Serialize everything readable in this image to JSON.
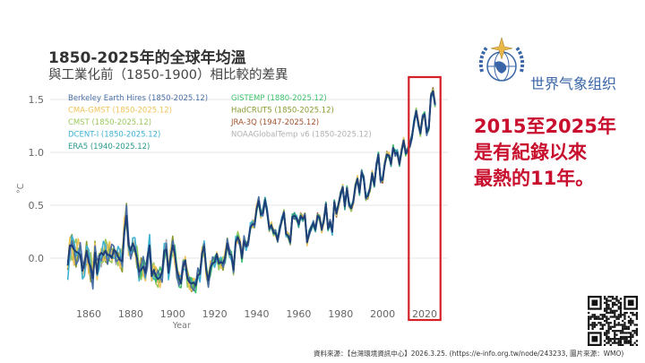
{
  "header": {
    "title": "1850-2025年的全球年均溫",
    "subtitle": "與工業化前（1850-1900）相比較的差異"
  },
  "wmo": {
    "name": "世界气象组织"
  },
  "headline": {
    "line1": "2015至2025年",
    "line2": "是有紀錄以來",
    "line3": "最熱的11年。"
  },
  "source": {
    "prefix": "資料來源：【台灣環境資訊中心】2026.3.25. (",
    "link": "https://e-info.org.tw/node/243233",
    "suffix": ", 圖片來源：WMO)"
  },
  "highlight_color": "#d42027",
  "chart_data": {
    "type": "line",
    "title": "1850-2025年的全球年均溫",
    "xlabel": "Year",
    "ylabel": "°C",
    "xlim": [
      1847,
      2027
    ],
    "ylim": [
      -0.35,
      1.65
    ],
    "xticks": [
      1860,
      1880,
      1900,
      1920,
      1940,
      1960,
      1980,
      2000,
      2020
    ],
    "yticks": [
      0.0,
      0.5,
      1.0,
      1.5
    ],
    "ytick_labels": [
      "0.0",
      "0.5",
      "1.0",
      "1.5"
    ],
    "grid": true,
    "legend_placement": "top-left",
    "highlight_range": [
      2015,
      2025
    ],
    "series": [
      {
        "name": "Berkeley Earth Hires (1850-2025.12)",
        "color": "#4a6fa5",
        "start": 1850
      },
      {
        "name": "CMA-GMST (1850-2025.12)",
        "color": "#f0c35a",
        "start": 1850
      },
      {
        "name": "CMST (1850-2025.12)",
        "color": "#9cc85c",
        "start": 1850
      },
      {
        "name": "DCENT-I (1850-2025.12)",
        "color": "#3fb1d3",
        "start": 1850
      },
      {
        "name": "ERA5 (1940-2025.12)",
        "color": "#2a9a8a",
        "start": 1940
      },
      {
        "name": "GISTEMP (1880-2025.12)",
        "color": "#3cbf6a",
        "start": 1880
      },
      {
        "name": "HadCRUT5 (1850-2025.12)",
        "color": "#8a9a30",
        "start": 1850
      },
      {
        "name": "JRA-3Q (1947-2025.12)",
        "color": "#a0522d",
        "start": 1947
      },
      {
        "name": "NOAAGlobalTemp v6 (1850-2025.12)",
        "color": "#b0b0b0",
        "start": 1850
      }
    ],
    "ensemble_start_year": 1850,
    "ensemble_values": [
      -0.07,
      0.12,
      0.12,
      0.08,
      0.06,
      0.05,
      0.03,
      -0.12,
      -0.04,
      0.07,
      -0.04,
      -0.08,
      -0.19,
      0.05,
      -0.15,
      0.02,
      0.05,
      0.03,
      0.07,
      0.03,
      0.03,
      0.0,
      0.08,
      0.06,
      0.01,
      -0.02,
      -0.03,
      0.26,
      0.4,
      0.12,
      0.07,
      0.14,
      0.08,
      0.0,
      -0.13,
      -0.11,
      -0.08,
      -0.14,
      0.01,
      0.12,
      -0.17,
      -0.11,
      -0.17,
      -0.2,
      -0.18,
      -0.13,
      0.07,
      0.08,
      -0.14,
      0.02,
      0.12,
      0.04,
      -0.11,
      -0.19,
      -0.24,
      -0.08,
      -0.02,
      -0.19,
      -0.23,
      -0.24,
      -0.23,
      -0.26,
      -0.16,
      -0.15,
      0.05,
      0.11,
      -0.12,
      -0.21,
      -0.09,
      -0.05,
      -0.04,
      0.04,
      -0.05,
      -0.04,
      -0.05,
      0.01,
      0.14,
      0.04,
      0.03,
      -0.11,
      0.15,
      0.2,
      0.15,
      0.0,
      0.16,
      0.11,
      0.16,
      0.29,
      0.32,
      0.32,
      0.47,
      0.54,
      0.41,
      0.43,
      0.55,
      0.44,
      0.28,
      0.31,
      0.24,
      0.24,
      0.17,
      0.28,
      0.36,
      0.43,
      0.23,
      0.21,
      0.15,
      0.39,
      0.4,
      0.38,
      0.32,
      0.4,
      0.37,
      0.4,
      0.15,
      0.24,
      0.29,
      0.33,
      0.27,
      0.4,
      0.38,
      0.27,
      0.36,
      0.51,
      0.28,
      0.34,
      0.25,
      0.53,
      0.42,
      0.51,
      0.61,
      0.67,
      0.49,
      0.66,
      0.51,
      0.47,
      0.53,
      0.68,
      0.75,
      0.62,
      0.81,
      0.76,
      0.57,
      0.59,
      0.66,
      0.8,
      0.69,
      0.87,
      0.98,
      0.74,
      0.74,
      0.89,
      0.98,
      0.97,
      0.89,
      1.04,
      0.99,
      1.0,
      0.89,
      1.01,
      1.11,
      0.99,
      1.02,
      1.07,
      1.15,
      1.29,
      1.39,
      1.27,
      1.18,
      1.33,
      1.36,
      1.19,
      1.23,
      1.53,
      1.58,
      1.45
    ]
  }
}
